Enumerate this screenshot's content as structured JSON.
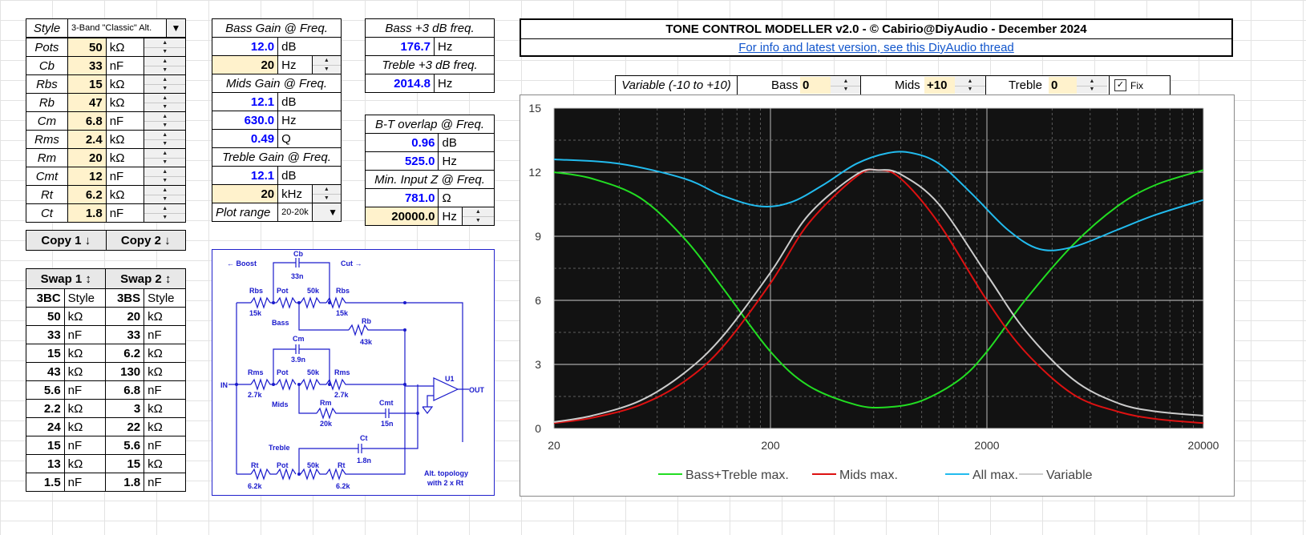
{
  "params": {
    "style_label": "Style",
    "style_value": "3-Band \"Classic\" Alt.",
    "rows": [
      {
        "name": "Pots",
        "value": "50",
        "unit": "kΩ"
      },
      {
        "name": "Cb",
        "value": "33",
        "unit": "nF"
      },
      {
        "name": "Rbs",
        "value": "15",
        "unit": "kΩ"
      },
      {
        "name": "Rb",
        "value": "47",
        "unit": "kΩ"
      },
      {
        "name": "Cm",
        "value": "6.8",
        "unit": "nF"
      },
      {
        "name": "Rms",
        "value": "2.4",
        "unit": "kΩ"
      },
      {
        "name": "Rm",
        "value": "20",
        "unit": "kΩ"
      },
      {
        "name": "Cmt",
        "value": "12",
        "unit": "nF"
      },
      {
        "name": "Rt",
        "value": "6.2",
        "unit": "kΩ"
      },
      {
        "name": "Ct",
        "value": "1.8",
        "unit": "nF"
      }
    ],
    "copy1": "Copy 1 ↓",
    "copy2": "Copy 2 ↓"
  },
  "swap": {
    "swap1": "Swap 1 ↕",
    "swap2": "Swap 2 ↕",
    "h1": "3BC",
    "h1b": "Style",
    "h2": "3BS",
    "h2b": "Style",
    "rows": [
      [
        "50",
        "kΩ",
        "20",
        "kΩ"
      ],
      [
        "33",
        "nF",
        "33",
        "nF"
      ],
      [
        "15",
        "kΩ",
        "6.2",
        "kΩ"
      ],
      [
        "43",
        "kΩ",
        "130",
        "kΩ"
      ],
      [
        "5.6",
        "nF",
        "6.8",
        "nF"
      ],
      [
        "2.2",
        "kΩ",
        "3",
        "kΩ"
      ],
      [
        "24",
        "kΩ",
        "22",
        "kΩ"
      ],
      [
        "15",
        "nF",
        "5.6",
        "nF"
      ],
      [
        "13",
        "kΩ",
        "15",
        "kΩ"
      ],
      [
        "1.5",
        "nF",
        "1.8",
        "nF"
      ]
    ]
  },
  "gains": {
    "bass_title": "Bass Gain @ Freq.",
    "bass_gain": "12.0",
    "bass_gain_unit": "dB",
    "bass_freq": "20",
    "bass_freq_unit": "Hz",
    "mids_title": "Mids Gain @ Freq.",
    "mids_gain": "12.1",
    "mids_gain_unit": "dB",
    "mids_freq": "630.0",
    "mids_freq_unit": "Hz",
    "mids_q": "0.49",
    "mids_q_unit": "Q",
    "treble_title": "Treble Gain @ Freq.",
    "treble_gain": "12.1",
    "treble_gain_unit": "dB",
    "treble_freq": "20",
    "treble_freq_unit": "kHz",
    "plot_range_label": "Plot range",
    "plot_range_value": "20-20k"
  },
  "freqs": {
    "bass3_title": "Bass +3 dB freq.",
    "bass3_value": "176.7",
    "bass3_unit": "Hz",
    "treble3_title": "Treble +3 dB freq.",
    "treble3_value": "2014.8",
    "treble3_unit": "Hz",
    "bt_title": "B-T overlap @ Freq.",
    "bt_db": "0.96",
    "bt_db_unit": "dB",
    "bt_hz": "525.0",
    "bt_hz_unit": "Hz",
    "minz_title": "Min. Input Z @ Freq.",
    "minz_ohm": "781.0",
    "minz_ohm_unit": "Ω",
    "minz_hz": "20000.0",
    "minz_hz_unit": "Hz"
  },
  "header": {
    "title": "TONE CONTROL MODELLER v2.0 - © Cabirio@DiyAudio - December 2024",
    "link": "For info and latest version, see this DiyAudio thread"
  },
  "controls": {
    "variable_label": "Variable (-10 to +10)",
    "bass_label": "Bass",
    "bass_value": "0",
    "mids_label": "Mids",
    "mids_value": "+10",
    "treble_label": "Treble",
    "treble_value": "0",
    "fix_label": "Fix",
    "fix_checked": true
  },
  "schematic": {
    "boost": "← Boost",
    "cut": "Cut →",
    "cb": "Cb",
    "cb_v": "33n",
    "rbs1": "Rbs",
    "rbs1_v": "15k",
    "pot1": "Pot",
    "pot1_v": "50k",
    "rbs2": "Rbs",
    "rbs2_v": "15k",
    "bass": "Bass",
    "rb": "Rb",
    "rb_v": "43k",
    "cm": "Cm",
    "cm_v": "3.9n",
    "in": "IN",
    "rms1": "Rms",
    "rms1_v": "2.7k",
    "pot2": "Pot",
    "pot2_v": "50k",
    "rms2": "Rms",
    "rms2_v": "2.7k",
    "mids": "Mids",
    "rm": "Rm",
    "rm_v": "20k",
    "cmt": "Cmt",
    "cmt_v": "15n",
    "u1": "U1",
    "out": "OUT",
    "treble": "Treble",
    "ct": "Ct",
    "ct_v": "1.8n",
    "rt1": "Rt",
    "rt1_v": "6.2k",
    "pot3": "Pot",
    "pot3_v": "50k",
    "rt2": "Rt",
    "rt2_v": "6.2k",
    "note1": "Alt. topology",
    "note2": "with 2 x Rt"
  },
  "chart_data": {
    "type": "line",
    "x_scale": "log",
    "xlim": [
      20,
      20000
    ],
    "ylim": [
      0,
      15
    ],
    "x_ticks": [
      "20",
      "200",
      "2000",
      "20000"
    ],
    "y_ticks": [
      "0",
      "3",
      "6",
      "9",
      "12",
      "15"
    ],
    "grid": true,
    "legend_position": "bottom",
    "series": [
      {
        "name": "Bass+Treble max.",
        "color": "#22dd22",
        "x": [
          20,
          30,
          50,
          80,
          120,
          200,
          300,
          500,
          700,
          1000,
          1500,
          2000,
          3000,
          5000,
          8000,
          12000,
          20000
        ],
        "y": [
          12.0,
          11.7,
          10.8,
          8.9,
          6.6,
          3.6,
          2.0,
          1.1,
          1.0,
          1.3,
          2.3,
          3.6,
          6.0,
          8.6,
          10.4,
          11.4,
          12.1
        ]
      },
      {
        "name": "Mids max.",
        "color": "#dd1111",
        "x": [
          20,
          30,
          50,
          80,
          120,
          200,
          300,
          500,
          630,
          800,
          1200,
          2000,
          3000,
          5000,
          8000,
          12000,
          20000
        ],
        "y": [
          0.25,
          0.5,
          1.1,
          2.2,
          3.8,
          6.8,
          9.6,
          11.8,
          12.1,
          11.7,
          9.6,
          6.0,
          3.6,
          1.6,
          0.8,
          0.45,
          0.25
        ]
      },
      {
        "name": "All max.",
        "color": "#22bbee",
        "x": [
          20,
          40,
          80,
          120,
          180,
          250,
          350,
          500,
          700,
          900,
          1200,
          1700,
          2500,
          3500,
          5000,
          8000,
          12000,
          20000
        ],
        "y": [
          12.6,
          12.4,
          11.7,
          10.9,
          10.4,
          10.6,
          11.4,
          12.4,
          12.9,
          12.9,
          12.4,
          11.0,
          9.3,
          8.4,
          8.5,
          9.3,
          10.0,
          10.7
        ]
      },
      {
        "name": "Variable",
        "color": "#cccccc",
        "x": [
          20,
          30,
          50,
          80,
          120,
          200,
          300,
          500,
          630,
          800,
          1200,
          2000,
          3000,
          5000,
          8000,
          12000,
          20000
        ],
        "y": [
          0.3,
          0.6,
          1.3,
          2.6,
          4.3,
          7.3,
          10.0,
          11.9,
          12.1,
          11.9,
          10.5,
          7.2,
          4.6,
          2.3,
          1.2,
          0.8,
          0.6
        ]
      }
    ]
  }
}
